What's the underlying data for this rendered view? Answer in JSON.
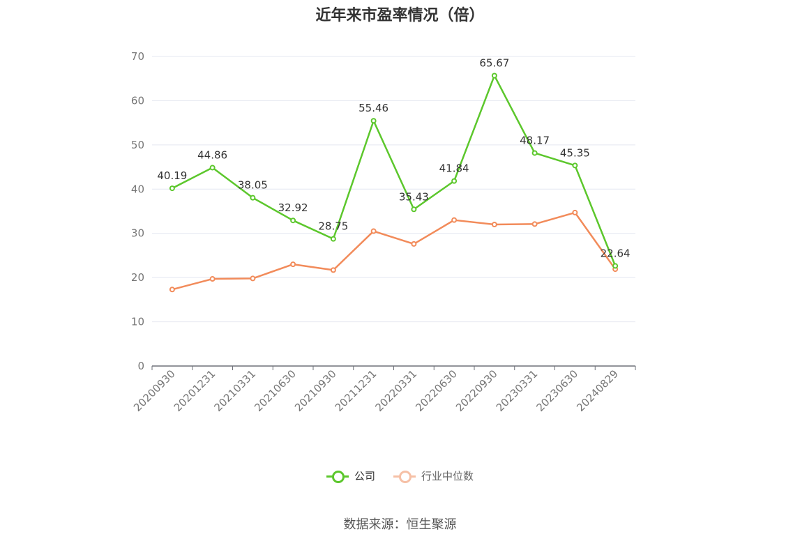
{
  "chart_data": {
    "type": "line",
    "title": "近年来市盈率情况（倍）",
    "categories": [
      "20200930",
      "20201231",
      "20210331",
      "20210630",
      "20210930",
      "20211231",
      "20220331",
      "20220630",
      "20220930",
      "20230331",
      "20230630",
      "20240829"
    ],
    "ylim": [
      0,
      70
    ],
    "yticks": [
      0,
      10,
      20,
      30,
      40,
      50,
      60,
      70
    ],
    "grid": true,
    "legend_position": "bottom",
    "series": [
      {
        "name": "公司",
        "color": "#5cc72c",
        "values": [
          40.19,
          44.86,
          38.05,
          32.92,
          28.75,
          55.46,
          35.43,
          41.84,
          65.67,
          48.17,
          45.35,
          22.64
        ],
        "labels": [
          "40.19",
          "44.86",
          "38.05",
          "32.92",
          "28.75",
          "55.46",
          "35.43",
          "41.84",
          "65.67",
          "48.17",
          "45.35",
          "22.64"
        ]
      },
      {
        "name": "行业中位数",
        "color": "#f28b5a",
        "values": [
          17.3,
          19.7,
          19.8,
          23.0,
          21.7,
          30.5,
          27.6,
          33.0,
          32.0,
          32.1,
          34.7,
          21.9
        ]
      }
    ]
  },
  "source": "数据来源：恒生聚源"
}
